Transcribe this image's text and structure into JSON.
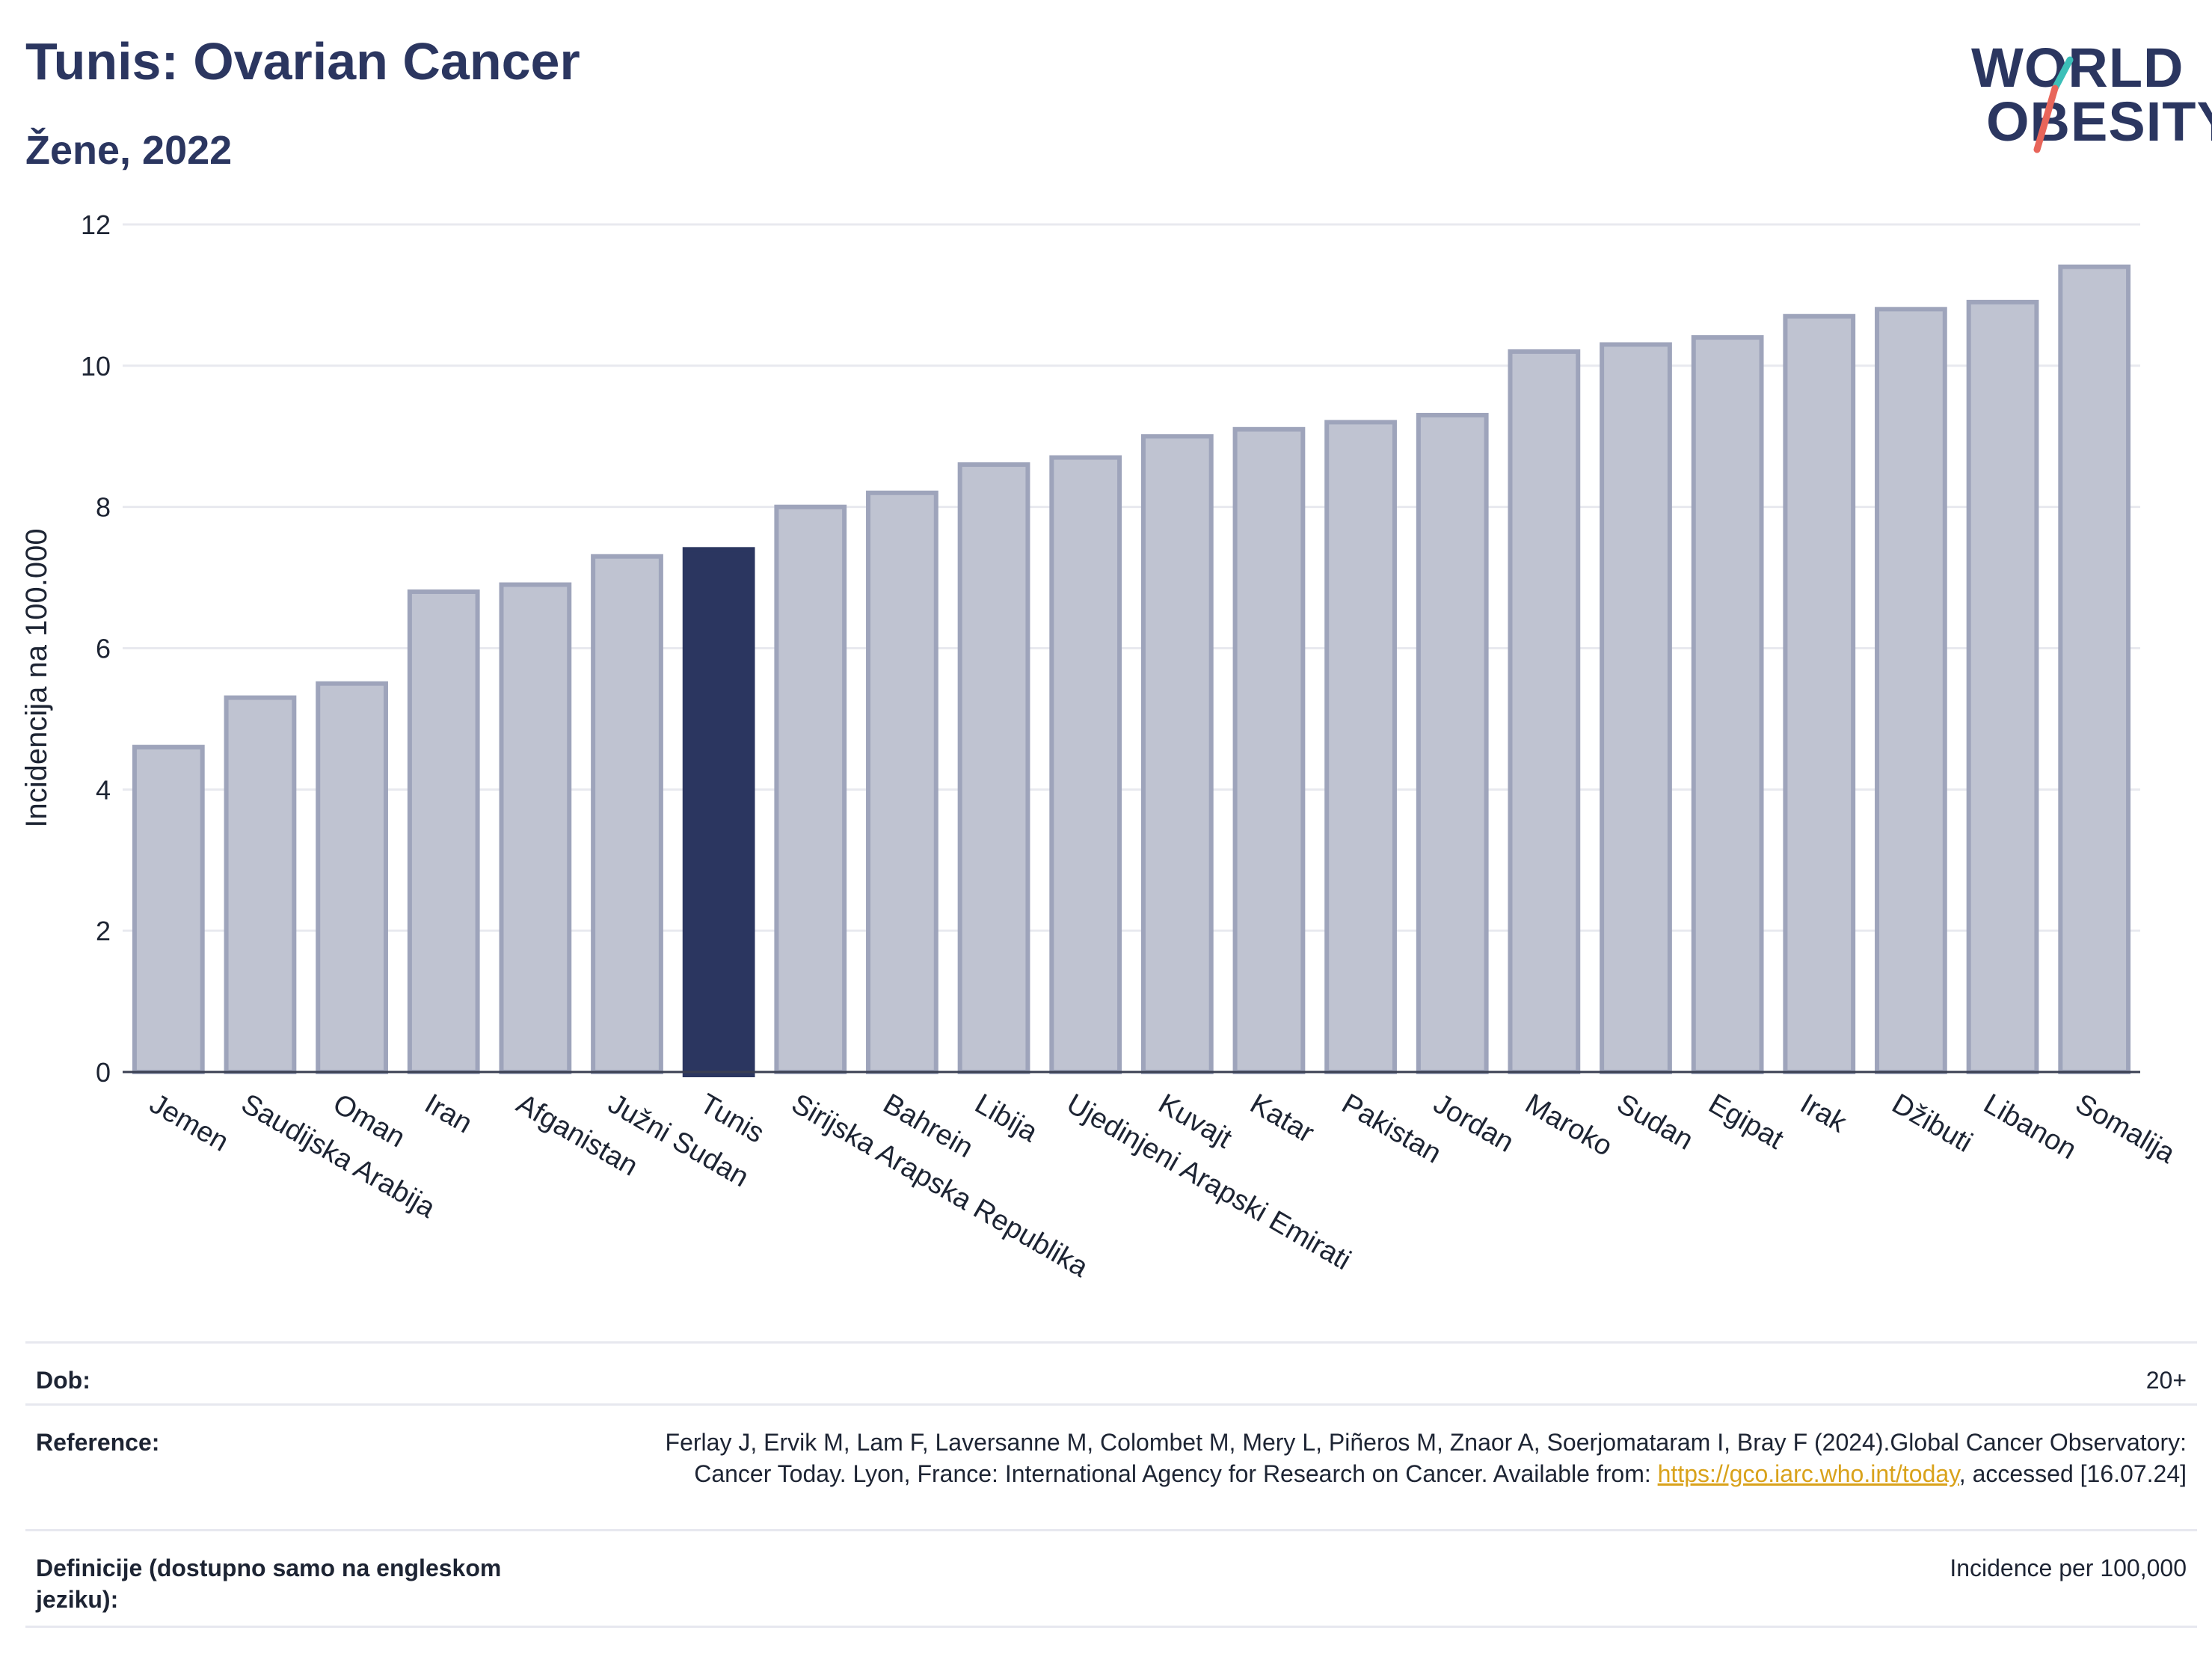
{
  "header": {
    "title": "Tunis: Ovarian Cancer",
    "subtitle": "Žene, 2022"
  },
  "logo": {
    "line1": "WORLD",
    "line2": "OBESITY",
    "slash_colors": [
      "#3cbfb8",
      "#e8655a"
    ]
  },
  "colors": {
    "bar": "#bfc3d1",
    "bar_border": "#9ea4bb",
    "highlight": "#2b3660",
    "axis_text": "#1d2433",
    "grid": "#e8e9ef"
  },
  "chart_data": {
    "type": "bar",
    "ylabel": "Incidencija na 100.000",
    "xlabel": "",
    "ylim": [
      0,
      12
    ],
    "yticks": [
      0,
      2,
      4,
      6,
      8,
      10,
      12
    ],
    "grid": true,
    "highlight": "Tunis",
    "categories": [
      "Jemen",
      "Saudijska Arabija",
      "Oman",
      "Iran",
      "Afganistan",
      "Južni Sudan",
      "Tunis",
      "Sirijska Arapska Republika",
      "Bahrein",
      "Libija",
      "Ujedinjeni Arapski Emirati",
      "Kuvajt",
      "Katar",
      "Pakistan",
      "Jordan",
      "Maroko",
      "Sudan",
      "Egipat",
      "Irak",
      "Džibuti",
      "Libanon",
      "Somalija"
    ],
    "values": [
      4.6,
      5.3,
      5.5,
      6.8,
      6.9,
      7.3,
      7.4,
      8.0,
      8.2,
      8.6,
      8.7,
      9.0,
      9.1,
      9.2,
      9.3,
      10.2,
      10.3,
      10.4,
      10.7,
      10.8,
      10.9,
      11.4
    ]
  },
  "info": {
    "age_label": "Dob:",
    "age_value": "20+",
    "ref_label": "Reference:",
    "ref_text1": "Ferlay J, Ervik M, Lam F, Laversanne M, Colombet M, Mery L, Piñeros M, Znaor A, Soerjomataram I, Bray F (2024).Global Cancer Observatory: Cancer Today. Lyon, France: International Agency for Research on Cancer. Available from: ",
    "ref_link": "https://gco.iarc.who.int/today",
    "ref_text2": ", accessed [16.07.24]",
    "def_label": "Definicije (dostupno samo na engleskom jeziku):",
    "def_value": "Incidence per 100,000"
  }
}
